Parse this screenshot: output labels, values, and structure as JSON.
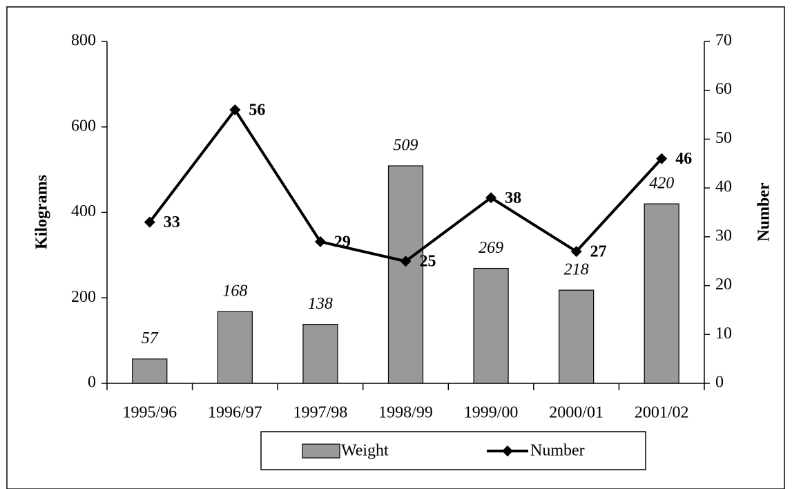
{
  "chart_data": {
    "type": "bar",
    "categories": [
      "1995/96",
      "1996/97",
      "1997/98",
      "1998/99",
      "1999/00",
      "2000/01",
      "2001/02"
    ],
    "series": [
      {
        "name": "Weight",
        "type": "bar",
        "color": "#999999",
        "values": [
          57,
          168,
          138,
          509,
          269,
          218,
          420
        ]
      },
      {
        "name": "Number",
        "type": "line",
        "axis": "y2",
        "color": "#000000",
        "values": [
          33,
          56,
          29,
          25,
          38,
          27,
          46
        ]
      }
    ],
    "ylabel": "Kilograms",
    "y2label": "Number",
    "ylim": [
      0,
      800
    ],
    "yticks": [
      0,
      200,
      400,
      600,
      800
    ],
    "y2lim": [
      0,
      70
    ],
    "y2ticks": [
      0,
      10,
      20,
      30,
      40,
      50,
      60,
      70
    ],
    "grid": false,
    "legend": "bottom"
  }
}
